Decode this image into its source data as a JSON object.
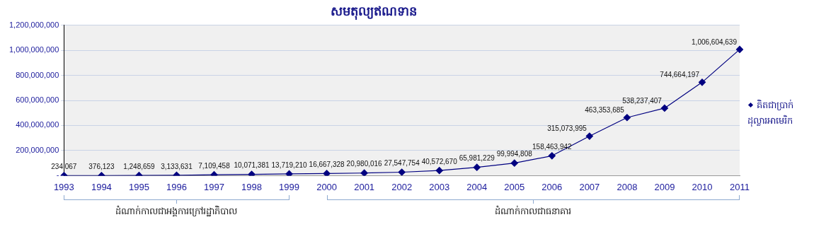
{
  "chart_data": {
    "type": "line",
    "title": "សមតុល្យឥណទាន",
    "categories": [
      "1993",
      "1994",
      "1995",
      "1996",
      "1997",
      "1998",
      "1999",
      "2000",
      "2001",
      "2002",
      "2003",
      "2004",
      "2005",
      "2006",
      "2007",
      "2008",
      "2009",
      "2010",
      "2011"
    ],
    "series": [
      {
        "name": "គិតជាប្រាក់ដុល្លារអាមេរិក",
        "color": "#000080",
        "values": [
          234067,
          376123,
          1248659,
          3133631,
          7109458,
          10071381,
          13719210,
          16667328,
          20980016,
          27547754,
          40572670,
          65981229,
          99994808,
          158463942,
          315073995,
          463353685,
          538237407,
          744664197,
          1006604639
        ]
      }
    ],
    "ylim": [
      0,
      1200000000
    ],
    "yticks": [
      {
        "value": 0,
        "label": "-"
      },
      {
        "value": 200000000,
        "label": "200,000,000"
      },
      {
        "value": 400000000,
        "label": "400,000,000"
      },
      {
        "value": 600000000,
        "label": "600,000,000"
      },
      {
        "value": 800000000,
        "label": "800,000,000"
      },
      {
        "value": 1000000000,
        "label": "1,000,000,000"
      },
      {
        "value": 1200000000,
        "label": "1,200,000,000"
      }
    ],
    "value_labels": [
      "234,067",
      "376,123",
      "1,248,659",
      "3,133,631",
      "7,109,458",
      "10,071,381",
      "13,719,210",
      "16,667,328",
      "20,980,016",
      "27,547,754",
      "40,572,670",
      "65,981,229",
      "99,994,808",
      "158,463,942",
      "315,073,995",
      "463,353,685",
      "538,237,407",
      "744,664,197",
      "1,006,604,639"
    ],
    "grid": "y",
    "legend": "right",
    "marker": "diamond",
    "annotations": [
      "ដំណាក់កាលជាអង្គការក្រៅរដ្ឋាភិបាល",
      "ដំណាក់កាលជាធនាគារ"
    ]
  }
}
